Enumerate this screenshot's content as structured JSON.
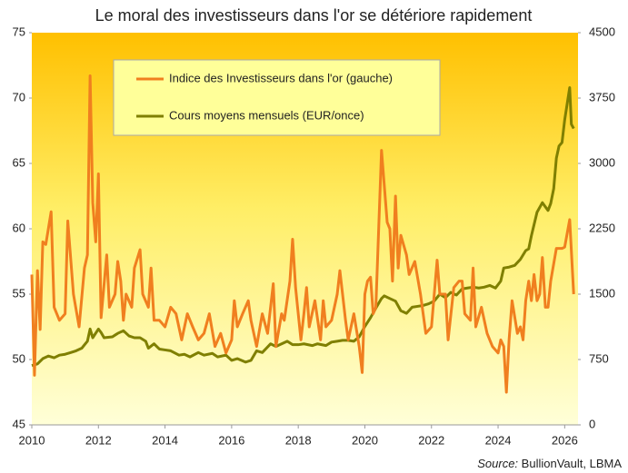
{
  "chart_data": {
    "type": "line",
    "title": "Le moral des investisseurs dans l'or se détériore rapidement",
    "source_label": "Source:",
    "source": "BullionVault, LBMA",
    "xlim": [
      2010,
      2026.4
    ],
    "xticks": [
      2010,
      2012,
      2014,
      2016,
      2018,
      2020,
      2022,
      2024,
      2026
    ],
    "ylim": [
      45,
      75
    ],
    "yticks": [
      45,
      50,
      55,
      60,
      65,
      70,
      75
    ],
    "y2lim": [
      0,
      4500
    ],
    "y2ticks": [
      0,
      750,
      1500,
      2250,
      3000,
      3750,
      4500
    ],
    "series": [
      {
        "name": "Indice des Investisseurs dans l'or (gauche)",
        "color": "#f07f1f",
        "axis": "y",
        "x": [
          2010.0,
          2010.08,
          2010.17,
          2010.25,
          2010.33,
          2010.42,
          2010.58,
          2010.67,
          2010.83,
          2011.0,
          2011.08,
          2011.25,
          2011.42,
          2011.58,
          2011.67,
          2011.75,
          2011.83,
          2011.92,
          2012.0,
          2012.08,
          2012.25,
          2012.33,
          2012.5,
          2012.58,
          2012.67,
          2012.75,
          2012.83,
          2013.0,
          2013.08,
          2013.25,
          2013.33,
          2013.5,
          2013.58,
          2013.67,
          2013.83,
          2014.0,
          2014.17,
          2014.33,
          2014.5,
          2014.67,
          2014.83,
          2015.0,
          2015.17,
          2015.33,
          2015.5,
          2015.67,
          2015.83,
          2016.0,
          2016.08,
          2016.17,
          2016.33,
          2016.5,
          2016.58,
          2016.75,
          2016.92,
          2017.08,
          2017.25,
          2017.33,
          2017.5,
          2017.58,
          2017.75,
          2017.83,
          2017.92,
          2018.0,
          2018.08,
          2018.17,
          2018.25,
          2018.33,
          2018.5,
          2018.67,
          2018.75,
          2018.83,
          2019.0,
          2019.17,
          2019.25,
          2019.42,
          2019.5,
          2019.67,
          2019.83,
          2019.92,
          2020.0,
          2020.08,
          2020.17,
          2020.25,
          2020.33,
          2020.5,
          2020.67,
          2020.75,
          2020.83,
          2020.92,
          2021.0,
          2021.08,
          2021.25,
          2021.33,
          2021.5,
          2021.67,
          2021.83,
          2022.0,
          2022.17,
          2022.25,
          2022.42,
          2022.5,
          2022.67,
          2022.83,
          2022.92,
          2023.0,
          2023.17,
          2023.25,
          2023.33,
          2023.5,
          2023.67,
          2023.83,
          2024.0,
          2024.08,
          2024.17,
          2024.25,
          2024.33,
          2024.42,
          2024.58,
          2024.67,
          2024.75,
          2024.83,
          2024.92,
          2025.0,
          2025.08,
          2025.17,
          2025.25,
          2025.33,
          2025.42,
          2025.5,
          2025.58,
          2025.75,
          2025.92,
          2026.0,
          2026.15,
          2026.27
        ],
        "values": [
          56.5,
          48.8,
          56.8,
          52.3,
          59,
          58.8,
          61.3,
          54,
          53,
          53.5,
          60.6,
          55,
          52.5,
          57,
          58,
          71.7,
          62,
          59,
          64.2,
          53.2,
          58,
          54,
          55,
          57.5,
          56,
          53,
          55,
          54,
          57,
          58.4,
          55,
          54,
          57,
          53,
          53,
          52.5,
          54,
          53.5,
          51.5,
          53.5,
          52.5,
          51.5,
          52,
          53.5,
          51,
          52,
          50.5,
          51.5,
          54.5,
          52.5,
          53.5,
          54.5,
          53,
          51,
          53.5,
          52,
          55.8,
          51,
          53.5,
          53,
          56,
          59.2,
          55.5,
          53.5,
          51.5,
          53.5,
          55.5,
          52.5,
          54.5,
          51.5,
          54.5,
          52.5,
          53,
          55,
          56.8,
          53,
          51.5,
          53.5,
          51,
          49,
          55,
          56,
          56.3,
          53.5,
          54,
          66,
          60.5,
          60,
          56,
          62.5,
          57,
          59.5,
          58,
          56.5,
          57.5,
          55,
          52,
          52.5,
          57.6,
          55,
          55,
          51.5,
          55.5,
          56,
          56,
          53.5,
          53,
          57,
          52.5,
          54,
          52,
          51,
          50.5,
          51.5,
          51,
          47.5,
          51.5,
          54.5,
          52,
          52.5,
          51.5,
          54.5,
          56,
          54.5,
          56.5,
          54.5,
          55,
          57.8,
          54,
          54,
          56,
          58.5,
          58.5,
          58.6,
          60.7,
          55
        ]
      },
      {
        "name": "Cours moyens mensuels (EUR/once)",
        "color": "#7f7f00",
        "axis": "y2",
        "x": [
          2010.0,
          2010.17,
          2010.33,
          2010.5,
          2010.67,
          2010.83,
          2011.0,
          2011.17,
          2011.33,
          2011.5,
          2011.67,
          2011.75,
          2011.83,
          2012.0,
          2012.08,
          2012.17,
          2012.42,
          2012.58,
          2012.75,
          2012.92,
          2013.08,
          2013.25,
          2013.42,
          2013.5,
          2013.67,
          2013.83,
          2014.0,
          2014.17,
          2014.42,
          2014.58,
          2014.75,
          2015.0,
          2015.17,
          2015.42,
          2015.58,
          2015.83,
          2016.0,
          2016.17,
          2016.42,
          2016.58,
          2016.75,
          2016.92,
          2017.17,
          2017.33,
          2017.5,
          2017.67,
          2017.83,
          2018.0,
          2018.17,
          2018.42,
          2018.58,
          2018.83,
          2019.0,
          2019.17,
          2019.33,
          2019.5,
          2019.67,
          2019.83,
          2020.0,
          2020.17,
          2020.33,
          2020.5,
          2020.58,
          2020.75,
          2020.92,
          2021.08,
          2021.25,
          2021.42,
          2021.58,
          2021.75,
          2021.92,
          2022.08,
          2022.25,
          2022.42,
          2022.58,
          2022.75,
          2022.92,
          2023.08,
          2023.25,
          2023.42,
          2023.58,
          2023.75,
          2023.92,
          2024.08,
          2024.17,
          2024.33,
          2024.5,
          2024.67,
          2024.83,
          2024.92,
          2025.0,
          2025.17,
          2025.33,
          2025.5,
          2025.58,
          2025.67,
          2025.75,
          2025.83,
          2025.92,
          2026.0,
          2026.15,
          2026.2,
          2026.27
        ],
        "values": [
          680,
          700,
          760,
          790,
          770,
          800,
          810,
          830,
          850,
          880,
          960,
          1100,
          1000,
          1100,
          1060,
          1000,
          1010,
          1050,
          1080,
          1020,
          1000,
          1000,
          960,
          880,
          930,
          870,
          860,
          850,
          800,
          810,
          780,
          830,
          800,
          820,
          780,
          800,
          740,
          760,
          720,
          740,
          850,
          830,
          930,
          900,
          930,
          960,
          920,
          920,
          930,
          910,
          930,
          910,
          950,
          960,
          970,
          970,
          960,
          1010,
          1130,
          1230,
          1340,
          1450,
          1480,
          1450,
          1420,
          1310,
          1280,
          1350,
          1360,
          1370,
          1390,
          1420,
          1500,
          1460,
          1520,
          1490,
          1560,
          1570,
          1580,
          1570,
          1580,
          1600,
          1570,
          1650,
          1800,
          1810,
          1830,
          1900,
          2000,
          2020,
          2170,
          2440,
          2550,
          2460,
          2540,
          2710,
          3060,
          3200,
          3240,
          3500,
          3870,
          3450,
          3400
        ]
      }
    ]
  }
}
